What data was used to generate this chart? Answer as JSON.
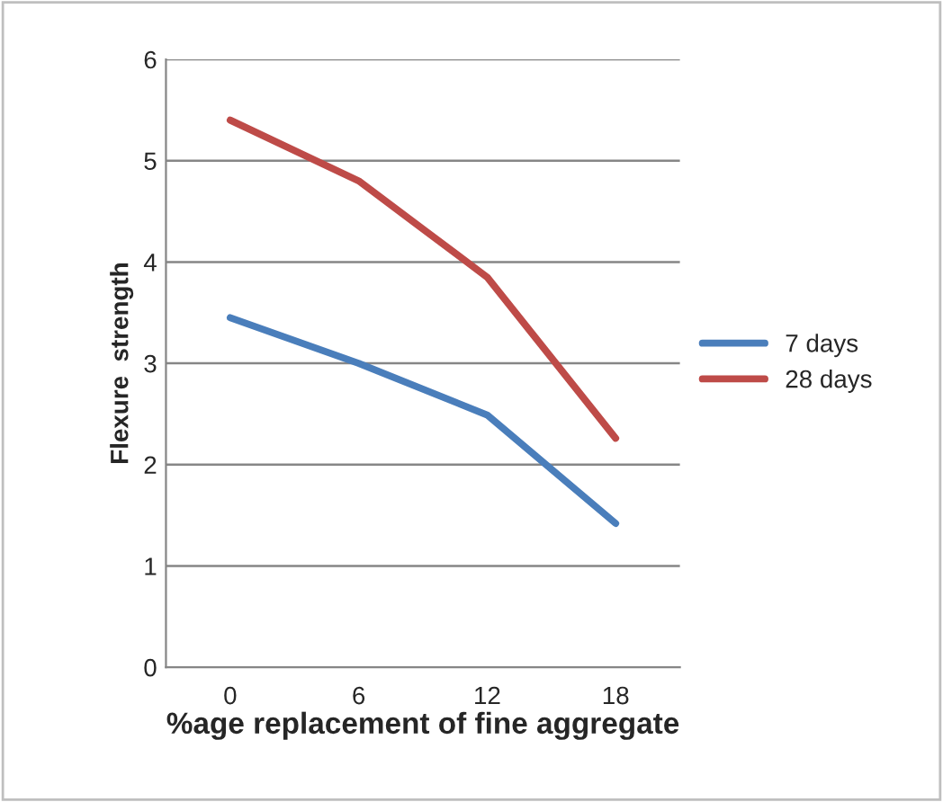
{
  "chart_data": {
    "type": "line",
    "xlabel": "%age replacement of fine aggregate",
    "ylabel": "Flexure  strength",
    "categories": [
      "0",
      "6",
      "12",
      "18"
    ],
    "series": [
      {
        "name": "7 days",
        "color": "#4a7ebb",
        "values": [
          3.45,
          3.0,
          2.49,
          1.42
        ]
      },
      {
        "name": "28 days",
        "color": "#be4b48",
        "values": [
          5.4,
          4.8,
          3.85,
          2.26
        ]
      }
    ],
    "ylim": [
      0,
      6
    ],
    "yticks": [
      0,
      1,
      2,
      3,
      4,
      5,
      6
    ],
    "grid": "y",
    "legend": "right",
    "marker": "none",
    "line_style": "solid"
  }
}
